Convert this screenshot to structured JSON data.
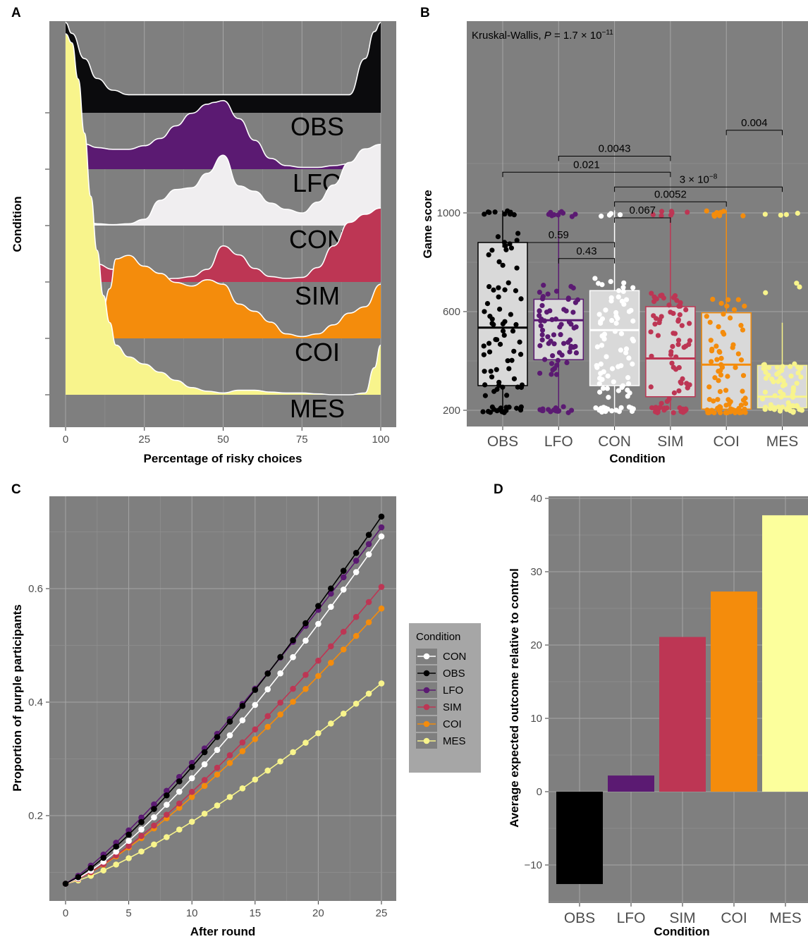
{
  "chart_data": [
    {
      "panel": "A",
      "type": "area",
      "xlabel": "Percentage of risky choices",
      "ylabel": "Condition",
      "xlim": [
        0,
        100
      ],
      "xticks": [
        0,
        25,
        50,
        75,
        100
      ],
      "series_order_bottom_to_top": [
        "MES",
        "COI",
        "SIM",
        "CON",
        "LFO",
        "OBS"
      ],
      "series": [
        {
          "name": "OBS",
          "color": "#0b0b0d",
          "x": [
            0,
            2,
            6,
            10,
            15,
            20,
            25,
            30,
            35,
            40,
            45,
            50,
            55,
            60,
            65,
            70,
            75,
            80,
            85,
            90,
            95,
            98,
            100
          ],
          "density": [
            1.0,
            0.88,
            0.6,
            0.38,
            0.25,
            0.2,
            0.2,
            0.2,
            0.2,
            0.2,
            0.2,
            0.2,
            0.2,
            0.2,
            0.2,
            0.2,
            0.2,
            0.2,
            0.2,
            0.2,
            0.6,
            0.9,
            1.0
          ]
        },
        {
          "name": "LFO",
          "color": "#5b1a72",
          "x": [
            0,
            2,
            6,
            10,
            15,
            20,
            25,
            30,
            35,
            40,
            45,
            47,
            50,
            55,
            60,
            65,
            70,
            75,
            80,
            85,
            90,
            95,
            100
          ],
          "density": [
            0.36,
            0.34,
            0.28,
            0.24,
            0.22,
            0.22,
            0.26,
            0.34,
            0.48,
            0.62,
            0.72,
            0.74,
            0.76,
            0.56,
            0.32,
            0.12,
            0.04,
            0.02,
            0.02,
            0.04,
            0.06,
            0.08,
            0.1
          ]
        },
        {
          "name": "CON",
          "color": "#f0eef0",
          "x": [
            0,
            2,
            6,
            10,
            15,
            20,
            25,
            30,
            35,
            40,
            45,
            50,
            55,
            60,
            65,
            70,
            75,
            80,
            85,
            90,
            95,
            100
          ],
          "density": [
            0.12,
            0.1,
            0.05,
            0.02,
            0.01,
            0.02,
            0.07,
            0.28,
            0.4,
            0.42,
            0.58,
            0.78,
            0.44,
            0.38,
            0.25,
            0.18,
            0.14,
            0.26,
            0.45,
            0.7,
            0.85,
            0.9
          ]
        },
        {
          "name": "CON_fill",
          "color": "#f0eef0",
          "x": [
            0,
            2,
            6,
            10,
            15,
            20,
            25,
            30,
            35,
            40,
            45,
            50,
            55,
            60,
            65,
            70,
            75,
            80,
            85,
            90,
            95,
            100
          ],
          "density": [
            0.25,
            0.22,
            0.2,
            0.15,
            0.1,
            0.13,
            0.08,
            0.02,
            0.1,
            0.25,
            0.4,
            0.2,
            0.05,
            0.02,
            0.02,
            0.03,
            0.05,
            0.1,
            0.12,
            0.1,
            0.6,
            0.8
          ]
        },
        {
          "name": "SIM",
          "color": "#bd3654",
          "x": [
            0,
            2,
            6,
            10,
            15,
            20,
            25,
            30,
            35,
            40,
            45,
            50,
            55,
            60,
            65,
            70,
            75,
            80,
            85,
            90,
            95,
            100
          ],
          "density": [
            1.0,
            0.9,
            0.55,
            0.2,
            0.14,
            0.1,
            0.05,
            0.03,
            0.04,
            0.06,
            0.14,
            0.4,
            0.3,
            0.15,
            0.06,
            0.04,
            0.05,
            0.16,
            0.4,
            0.66,
            0.75,
            0.82
          ]
        },
        {
          "name": "COI",
          "color": "#f48c0c",
          "x": [
            0,
            2,
            6,
            10,
            12,
            14,
            16,
            20,
            25,
            30,
            35,
            40,
            45,
            50,
            55,
            60,
            65,
            70,
            75,
            80,
            85,
            90,
            95,
            100
          ],
          "density": [
            0.42,
            0.38,
            0.3,
            0.3,
            0.35,
            0.55,
            0.88,
            0.92,
            0.8,
            0.72,
            0.62,
            0.58,
            0.65,
            0.6,
            0.38,
            0.3,
            0.18,
            0.05,
            0.02,
            0.05,
            0.15,
            0.28,
            0.35,
            0.6
          ]
        },
        {
          "name": "MES",
          "color": "#f8f48c",
          "x": [
            0,
            2,
            4,
            6,
            8,
            10,
            12,
            14,
            16,
            20,
            25,
            30,
            35,
            40,
            45,
            50,
            55,
            60,
            65,
            70,
            75,
            80,
            85,
            90,
            95,
            98,
            100
          ],
          "density": [
            4.0,
            3.9,
            3.5,
            2.9,
            2.2,
            1.6,
            1.1,
            0.8,
            0.55,
            0.42,
            0.34,
            0.25,
            0.16,
            0.08,
            0.04,
            0.02,
            0.05,
            0.05,
            0.03,
            0.02,
            0.02,
            0.01,
            0.0,
            0.0,
            0.02,
            0.3,
            0.55
          ]
        }
      ]
    },
    {
      "panel": "B",
      "type": "box",
      "xlabel": "Condition",
      "ylabel": "Game score",
      "ylim": [
        120,
        1350
      ],
      "yticks": [
        200,
        600,
        1000
      ],
      "categories": [
        "OBS",
        "LFO",
        "CON",
        "SIM",
        "COI",
        "MES"
      ],
      "colors": [
        "#000000",
        "#5b1a72",
        "#ffffff",
        "#bd3654",
        "#f48c0c",
        "#f8f48c"
      ],
      "boxes": [
        {
          "lower_whisker": 200,
          "q1": 300,
          "median": 535,
          "q3": 880,
          "upper_whisker": 1010
        },
        {
          "lower_whisker": 200,
          "q1": 405,
          "median": 565,
          "q3": 650,
          "upper_whisker": 1010
        },
        {
          "lower_whisker": 200,
          "q1": 300,
          "median": 525,
          "q3": 685,
          "upper_whisker": 1010
        },
        {
          "lower_whisker": 200,
          "q1": 255,
          "median": 410,
          "q3": 620,
          "upper_whisker": 1010
        },
        {
          "lower_whisker": 200,
          "q1": 205,
          "median": 385,
          "q3": 595,
          "upper_whisker": 1010
        },
        {
          "lower_whisker": 200,
          "q1": 210,
          "median": 255,
          "q3": 382,
          "upper_whisker": 555
        }
      ],
      "annotation": "Kruskal-Wallis, P = 1.7 × 10",
      "annotation_exp": "−11",
      "brackets": [
        {
          "from": "COI",
          "to": "MES",
          "label": "0.004",
          "y": 1335
        },
        {
          "from": "LFO",
          "to": "SIM",
          "label": "0.0043",
          "y": 1230
        },
        {
          "from": "OBS",
          "to": "SIM",
          "label": "0.021",
          "y": 1165
        },
        {
          "from": "CON",
          "to": "MES",
          "label": "3 × 10",
          "label_exp": "−8",
          "y": 1105
        },
        {
          "from": "CON",
          "to": "COI",
          "label": "0.0052",
          "y": 1045
        },
        {
          "from": "CON",
          "to": "SIM",
          "label": "0.067",
          "y": 980
        },
        {
          "from": "OBS",
          "to": "CON",
          "label": "0.59",
          "y": 880
        },
        {
          "from": "LFO",
          "to": "CON",
          "label": "0.43",
          "y": 815
        }
      ]
    },
    {
      "panel": "C",
      "type": "line",
      "xlabel": "After round",
      "ylabel": "Proportion of purple participants",
      "xlim": [
        -1.2,
        26.2
      ],
      "ylim": [
        0.055,
        0.77
      ],
      "xticks": [
        0,
        5,
        10,
        15,
        20,
        25
      ],
      "yticks": [
        0.2,
        0.4,
        0.6
      ],
      "y0": 0.08,
      "legend": {
        "title": "Condition",
        "position": "right"
      },
      "series": [
        {
          "name": "CON",
          "color": "#ffffff",
          "y25": 0.692,
          "exponent": 1.3
        },
        {
          "name": "OBS",
          "color": "#000000",
          "y25": 0.727,
          "exponent": 1.25
        },
        {
          "name": "LFO",
          "color": "#5b1a72",
          "y25": 0.708,
          "exponent": 1.18
        },
        {
          "name": "SIM",
          "color": "#bd3654",
          "y25": 0.603,
          "exponent": 1.28
        },
        {
          "name": "COI",
          "color": "#f48c0c",
          "y25": 0.565,
          "exponent": 1.26
        },
        {
          "name": "MES",
          "color": "#f8f48c",
          "y25": 0.433,
          "exponent": 1.28
        }
      ]
    },
    {
      "panel": "D",
      "type": "bar",
      "xlabel": "Condition",
      "ylabel": "Average expected outcome relative to control",
      "ylim": [
        -15.5,
        40
      ],
      "yticks": [
        -10,
        0,
        10,
        20,
        30,
        40
      ],
      "categories": [
        "OBS",
        "LFO",
        "SIM",
        "COI",
        "MES"
      ],
      "values": [
        -12.6,
        2.2,
        21.1,
        27.3,
        37.7
      ],
      "colors": [
        "#000000",
        "#5b1a72",
        "#bd3654",
        "#f48c0c",
        "#fcff9c"
      ]
    }
  ],
  "labels": {
    "panel_a": "A",
    "panel_b": "B",
    "panel_c": "C",
    "panel_d": "D"
  }
}
